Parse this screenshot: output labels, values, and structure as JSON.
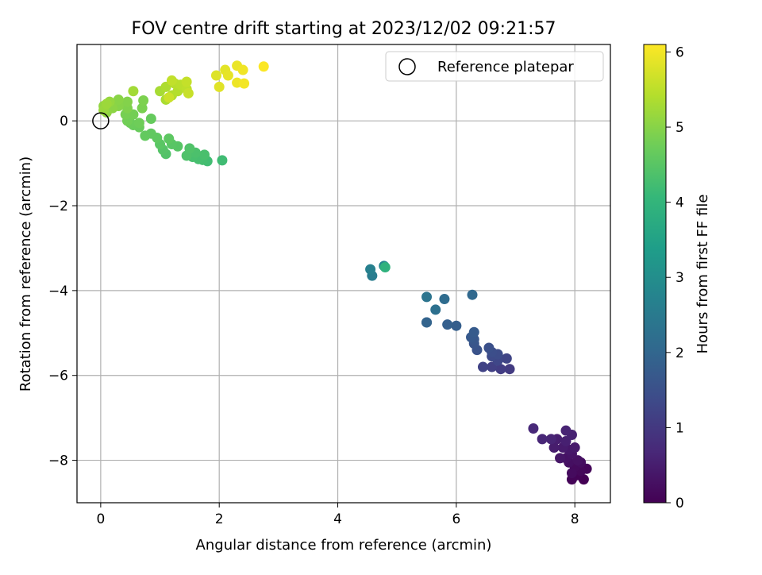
{
  "chart_data": {
    "type": "scatter",
    "title": "FOV centre drift starting at 2023/12/02 09:21:57",
    "xlabel": "Angular distance from reference (arcmin)",
    "ylabel": "Rotation from reference (arcmin)",
    "xlim": [
      -0.4,
      8.6
    ],
    "ylim": [
      -9.0,
      1.8
    ],
    "xticks": [
      0,
      2,
      4,
      6,
      8
    ],
    "yticks": [
      -8,
      -6,
      -4,
      -2,
      0
    ],
    "grid": true,
    "legend": {
      "placement": "top-right",
      "entries": [
        "Reference platepar"
      ]
    },
    "colorbar": {
      "label": "Hours from first FF file",
      "range": [
        0,
        6.1
      ],
      "ticks": [
        0,
        1,
        2,
        3,
        4,
        5,
        6
      ],
      "colormap": "viridis"
    },
    "reference_point": {
      "x": 0,
      "y": 0,
      "label": "Reference platepar"
    },
    "points": [
      [
        8.15,
        -8.45,
        0.0
      ],
      [
        8.05,
        -8.35,
        0.03
      ],
      [
        7.95,
        -8.45,
        0.06
      ],
      [
        8.2,
        -8.2,
        0.09
      ],
      [
        8.1,
        -8.25,
        0.12
      ],
      [
        8.0,
        -8.15,
        0.15
      ],
      [
        7.95,
        -8.3,
        0.18
      ],
      [
        8.1,
        -8.05,
        0.21
      ],
      [
        7.9,
        -8.05,
        0.24
      ],
      [
        8.05,
        -8.0,
        0.27
      ],
      [
        7.85,
        -7.95,
        0.3
      ],
      [
        7.95,
        -7.85,
        0.33
      ],
      [
        7.75,
        -7.95,
        0.36
      ],
      [
        7.9,
        -7.75,
        0.39
      ],
      [
        8.0,
        -7.7,
        0.42
      ],
      [
        7.8,
        -7.7,
        0.45
      ],
      [
        7.65,
        -7.7,
        0.48
      ],
      [
        7.7,
        -7.5,
        0.51
      ],
      [
        7.85,
        -7.55,
        0.54
      ],
      [
        7.95,
        -7.4,
        0.57
      ],
      [
        7.85,
        -7.3,
        0.6
      ],
      [
        7.6,
        -7.5,
        0.63
      ],
      [
        7.45,
        -7.5,
        0.66
      ],
      [
        7.3,
        -7.25,
        0.7
      ],
      [
        6.9,
        -5.85,
        1.05
      ],
      [
        6.75,
        -5.85,
        1.1
      ],
      [
        6.6,
        -5.8,
        1.15
      ],
      [
        6.45,
        -5.8,
        1.2
      ],
      [
        6.85,
        -5.6,
        1.25
      ],
      [
        6.7,
        -5.65,
        1.3
      ],
      [
        6.6,
        -5.55,
        1.35
      ],
      [
        6.7,
        -5.5,
        1.4
      ],
      [
        6.6,
        -5.45,
        1.45
      ],
      [
        6.55,
        -5.35,
        1.5
      ],
      [
        6.35,
        -5.4,
        1.55
      ],
      [
        6.3,
        -5.25,
        1.6
      ],
      [
        6.3,
        -5.15,
        1.65
      ],
      [
        6.25,
        -5.1,
        1.7
      ],
      [
        6.3,
        -4.98,
        1.75
      ],
      [
        6.0,
        -4.83,
        1.8
      ],
      [
        5.85,
        -4.8,
        1.85
      ],
      [
        5.5,
        -4.75,
        1.9
      ],
      [
        5.5,
        -4.75,
        1.95
      ],
      [
        6.27,
        -4.1,
        2.05
      ],
      [
        5.8,
        -4.2,
        2.15
      ],
      [
        5.65,
        -4.45,
        2.25
      ],
      [
        5.5,
        -4.15,
        2.35
      ],
      [
        4.58,
        -3.65,
        2.55
      ],
      [
        4.55,
        -3.5,
        2.65
      ],
      [
        4.78,
        -3.42,
        2.8
      ],
      [
        4.8,
        -3.45,
        3.9
      ],
      [
        2.05,
        -0.93,
        4.2
      ],
      [
        1.8,
        -0.95,
        4.22
      ],
      [
        1.72,
        -0.92,
        4.25
      ],
      [
        1.65,
        -0.9,
        4.28
      ],
      [
        1.55,
        -0.85,
        4.3
      ],
      [
        1.75,
        -0.8,
        4.32
      ],
      [
        1.6,
        -0.75,
        4.35
      ],
      [
        1.45,
        -0.82,
        4.38
      ],
      [
        1.5,
        -0.65,
        4.4
      ],
      [
        1.1,
        -0.78,
        4.42
      ],
      [
        1.05,
        -0.68,
        4.45
      ],
      [
        1.3,
        -0.6,
        4.48
      ],
      [
        1.2,
        -0.55,
        4.5
      ],
      [
        1.0,
        -0.55,
        4.52
      ],
      [
        1.15,
        -0.42,
        4.55
      ],
      [
        0.95,
        -0.4,
        4.58
      ],
      [
        0.85,
        -0.3,
        4.6
      ],
      [
        0.75,
        -0.35,
        4.62
      ],
      [
        0.85,
        0.05,
        4.65
      ],
      [
        0.65,
        -0.15,
        4.68
      ],
      [
        0.55,
        -0.1,
        4.7
      ],
      [
        0.5,
        -0.05,
        4.72
      ],
      [
        0.65,
        -0.05,
        4.75
      ],
      [
        0.45,
        0.0,
        4.78
      ],
      [
        0.55,
        0.15,
        4.8
      ],
      [
        0.42,
        0.15,
        4.83
      ],
      [
        0.7,
        0.3,
        4.86
      ],
      [
        0.72,
        0.48,
        4.89
      ],
      [
        0.45,
        0.3,
        4.92
      ],
      [
        0.45,
        0.45,
        4.95
      ],
      [
        0.3,
        0.35,
        4.98
      ],
      [
        0.3,
        0.5,
        5.01
      ],
      [
        0.2,
        0.3,
        5.04
      ],
      [
        0.1,
        0.2,
        5.07
      ],
      [
        0.05,
        0.35,
        5.1
      ],
      [
        0.15,
        0.45,
        5.13
      ],
      [
        0.05,
        0.25,
        5.16
      ],
      [
        0.1,
        0.4,
        5.19
      ],
      [
        0.55,
        0.7,
        5.25
      ],
      [
        1.0,
        0.7,
        5.3
      ],
      [
        1.1,
        0.5,
        5.33
      ],
      [
        1.1,
        0.8,
        5.36
      ],
      [
        1.2,
        0.6,
        5.39
      ],
      [
        1.3,
        0.7,
        5.42
      ],
      [
        1.25,
        0.88,
        5.45
      ],
      [
        1.35,
        0.85,
        5.48
      ],
      [
        1.45,
        0.75,
        5.51
      ],
      [
        1.2,
        0.95,
        5.54
      ],
      [
        1.45,
        0.92,
        5.57
      ],
      [
        1.48,
        0.65,
        5.6
      ],
      [
        1.15,
        0.55,
        5.63
      ],
      [
        1.95,
        1.07,
        5.8
      ],
      [
        2.0,
        0.8,
        5.83
      ],
      [
        2.1,
        1.2,
        5.86
      ],
      [
        2.15,
        1.07,
        5.89
      ],
      [
        2.3,
        1.3,
        5.92
      ],
      [
        2.3,
        0.9,
        5.95
      ],
      [
        2.4,
        1.2,
        5.98
      ],
      [
        2.42,
        0.88,
        6.01
      ],
      [
        2.75,
        1.28,
        6.08
      ]
    ]
  }
}
